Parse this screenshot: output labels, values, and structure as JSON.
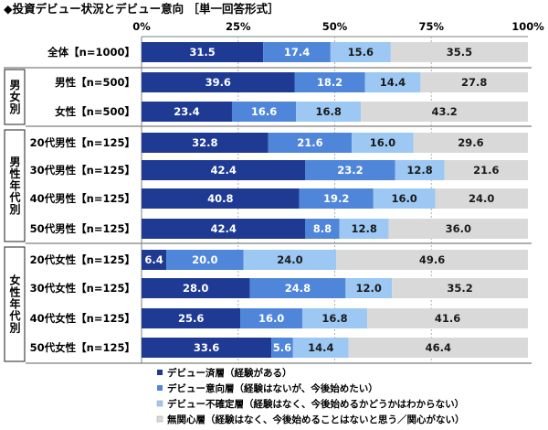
{
  "chart_data": {
    "type": "bar",
    "stacked": true,
    "orientation": "horizontal",
    "title": "◆投資デビュー状況とデビュー意向 ［単一回答形式］",
    "x_ticks": [
      "0%",
      "25%",
      "50%",
      "75%",
      "100%"
    ],
    "xlim": [
      0,
      100
    ],
    "groups": [
      {
        "label": "",
        "rows": [
          0
        ]
      },
      {
        "label": "男女別",
        "rows": [
          1,
          2
        ]
      },
      {
        "label": "男性年代別",
        "rows": [
          3,
          4,
          5,
          6
        ]
      },
      {
        "label": "女性年代別",
        "rows": [
          7,
          8,
          9,
          10
        ]
      }
    ],
    "categories": [
      "全体【n=1000】",
      "男性【n=500】",
      "女性【n=500】",
      "20代男性【n=125】",
      "30代男性【n=125】",
      "40代男性【n=125】",
      "50代男性【n=125】",
      "20代女性【n=125】",
      "30代女性【n=125】",
      "40代女性【n=125】",
      "50代女性【n=125】"
    ],
    "series": [
      {
        "name": "デビュー済層（経験がある）",
        "color": "#1f3a93",
        "values": [
          31.5,
          39.6,
          23.4,
          32.8,
          42.4,
          40.8,
          42.4,
          6.4,
          28.0,
          25.6,
          33.6
        ],
        "labels": [
          "31.5",
          "39.6",
          "23.4",
          "32.8",
          "42.4",
          "40.8",
          "42.4",
          "6.4",
          "28.0",
          "25.6",
          "33.6"
        ]
      },
      {
        "name": "デビュー意向層（経験はないが、今後始めたい）",
        "color": "#4f86d9",
        "values": [
          17.4,
          18.2,
          16.6,
          21.6,
          23.2,
          19.2,
          8.8,
          20.0,
          24.8,
          16.0,
          5.6
        ],
        "labels": [
          "17.4",
          "18.2",
          "16.6",
          "21.6",
          "23.2",
          "19.2",
          "8.8",
          "20.0",
          "24.8",
          "16.0",
          "5.6"
        ]
      },
      {
        "name": "デビュー不確定層（経験はなく、今後始めるかどうかはわからない）",
        "color": "#9cc8f3",
        "values": [
          15.6,
          14.4,
          16.8,
          16.0,
          12.8,
          16.0,
          12.8,
          24.0,
          12.0,
          16.8,
          14.4
        ],
        "labels": [
          "15.6",
          "14.4",
          "16.8",
          "16.0",
          "12.8",
          "16.0",
          "12.8",
          "24.0",
          "12.0",
          "16.8",
          "14.4"
        ]
      },
      {
        "name": "無関心層（経験はなく、今後始めることはないと思う／関心がない）",
        "color": "#d9d9d9",
        "values": [
          35.5,
          27.8,
          43.2,
          29.6,
          21.6,
          24.0,
          36.0,
          49.6,
          35.2,
          41.6,
          46.4
        ],
        "labels": [
          "35.5",
          "27.8",
          "43.2",
          "29.6",
          "21.6",
          "24.0",
          "36.0",
          "49.6",
          "35.2",
          "41.6",
          "46.4"
        ]
      }
    ]
  }
}
